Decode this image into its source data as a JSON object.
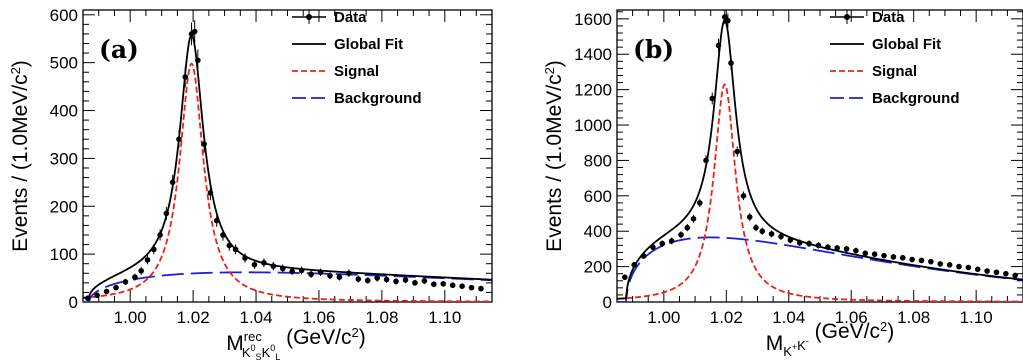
{
  "chart_data": [
    {
      "type": "line",
      "panel_label": "(a)",
      "xlabel": {
        "base": "M",
        "sup": "rec",
        "sub": "K",
        "sub_sup1": "0",
        "sub_s": "S",
        "sub_k2": "K",
        "sub_sup2": "0",
        "sub_l": "L",
        "unit": " (GeV/c",
        "unit_sup": "2",
        "unit_end": ")"
      },
      "ylabel": {
        "text": "Events / (1.0MeV/c",
        "sup": "2",
        "end": ")"
      },
      "xlim": [
        0.985,
        1.115
      ],
      "ylim": [
        0,
        610
      ],
      "x_ticks": [
        1.0,
        1.02,
        1.04,
        1.06,
        1.08,
        1.1
      ],
      "x_tick_labels": [
        "1.00",
        "1.02",
        "1.04",
        "1.06",
        "1.08",
        "1.10"
      ],
      "y_ticks": [
        0,
        100,
        200,
        300,
        400,
        500,
        600
      ],
      "y_tick_labels": [
        "0",
        "100",
        "200",
        "300",
        "400",
        "500",
        "600"
      ],
      "legend": {
        "position": "top-right",
        "entries": [
          "Data",
          "Global Fit",
          "Signal",
          "Background"
        ]
      },
      "peak": {
        "mass": 1.0195,
        "width": 0.0046,
        "signal_amplitude": 498,
        "threshold": 0.987
      },
      "background": {
        "peak_value": 62,
        "peak_x": 1.037
      },
      "series": [
        {
          "name": "Data",
          "style": "points",
          "color": "#000000",
          "x": [
            0.9865,
            0.9895,
            0.9925,
            0.9955,
            0.9985,
            1.0015,
            1.0035,
            1.0055,
            1.0075,
            1.0095,
            1.0115,
            1.0135,
            1.0155,
            1.0175,
            1.0195,
            1.0205,
            1.0215,
            1.0235,
            1.0255,
            1.0275,
            1.0295,
            1.0315,
            1.0335,
            1.0365,
            1.0395,
            1.0425,
            1.0455,
            1.0485,
            1.0515,
            1.0545,
            1.0575,
            1.0605,
            1.0635,
            1.0665,
            1.0695,
            1.0725,
            1.0755,
            1.0785,
            1.0815,
            1.0845,
            1.0875,
            1.0905,
            1.0935,
            1.0965,
            1.0995,
            1.1025,
            1.1055,
            1.1085,
            1.1115
          ],
          "y": [
            8,
            14,
            22,
            30,
            42,
            52,
            65,
            88,
            110,
            140,
            185,
            250,
            340,
            470,
            560,
            565,
            505,
            330,
            228,
            170,
            140,
            118,
            110,
            92,
            78,
            82,
            75,
            70,
            64,
            66,
            58,
            62,
            55,
            52,
            60,
            48,
            45,
            50,
            47,
            43,
            46,
            40,
            44,
            37,
            38,
            35,
            33,
            30,
            28
          ]
        },
        {
          "name": "Global Fit",
          "style": "line",
          "color": "#000000",
          "width": 1.8
        },
        {
          "name": "Signal",
          "style": "dashed",
          "color": "#e8231a",
          "width": 1.8
        },
        {
          "name": "Background",
          "style": "longdash",
          "color": "#1f1fd6",
          "width": 1.8
        }
      ]
    },
    {
      "type": "line",
      "panel_label": "(b)",
      "xlabel": {
        "base": "M",
        "sub": "K",
        "sub_sup1": "+",
        "sub_k2": "K",
        "sub_sup2": "-",
        "unit": " (GeV/c",
        "unit_sup": "2",
        "unit_end": ")"
      },
      "ylabel": {
        "text": "Events / (1.0MeV/c",
        "sup": "2",
        "end": ")"
      },
      "xlim": [
        0.985,
        1.115
      ],
      "ylim": [
        0,
        1650
      ],
      "x_ticks": [
        1.0,
        1.02,
        1.04,
        1.06,
        1.08,
        1.1
      ],
      "x_tick_labels": [
        "1.00",
        "1.02",
        "1.04",
        "1.06",
        "1.08",
        "1.10"
      ],
      "y_ticks": [
        0,
        200,
        400,
        600,
        800,
        1000,
        1200,
        1400,
        1600
      ],
      "y_tick_labels": [
        "0",
        "200",
        "400",
        "600",
        "800",
        "1000",
        "1200",
        "1400",
        "1600"
      ],
      "legend": {
        "position": "top-right",
        "entries": [
          "Data",
          "Global Fit",
          "Signal",
          "Background"
        ]
      },
      "peak": {
        "mass": 1.0195,
        "width": 0.0042,
        "signal_amplitude": 1230,
        "threshold": 0.988
      },
      "background": {
        "peak_value": 365,
        "peak_x": 1.015
      },
      "series": [
        {
          "name": "Data",
          "style": "points",
          "color": "#000000",
          "x": [
            0.9875,
            0.9905,
            0.9935,
            0.9965,
            0.9995,
            1.0025,
            1.0055,
            1.0075,
            1.0095,
            1.0115,
            1.0135,
            1.0155,
            1.0175,
            1.0195,
            1.0205,
            1.0215,
            1.0235,
            1.0255,
            1.0275,
            1.0295,
            1.0315,
            1.0345,
            1.0375,
            1.0405,
            1.0435,
            1.0465,
            1.0495,
            1.0525,
            1.0555,
            1.0585,
            1.0615,
            1.0645,
            1.0675,
            1.0705,
            1.0735,
            1.0765,
            1.0795,
            1.0825,
            1.0855,
            1.0885,
            1.0915,
            1.0945,
            1.0975,
            1.1005,
            1.1035,
            1.1065,
            1.1095,
            1.1125
          ],
          "y": [
            140,
            210,
            260,
            310,
            330,
            345,
            380,
            420,
            470,
            560,
            800,
            1150,
            1450,
            1610,
            1590,
            1350,
            850,
            600,
            480,
            420,
            400,
            385,
            370,
            350,
            335,
            330,
            320,
            310,
            305,
            300,
            290,
            275,
            270,
            262,
            255,
            250,
            240,
            235,
            228,
            215,
            210,
            200,
            195,
            185,
            175,
            168,
            160,
            150
          ]
        },
        {
          "name": "Global Fit",
          "style": "line",
          "color": "#000000",
          "width": 1.8
        },
        {
          "name": "Signal",
          "style": "dashed",
          "color": "#e8231a",
          "width": 1.8
        },
        {
          "name": "Background",
          "style": "longdash",
          "color": "#1f1fd6",
          "width": 1.8
        }
      ]
    }
  ]
}
